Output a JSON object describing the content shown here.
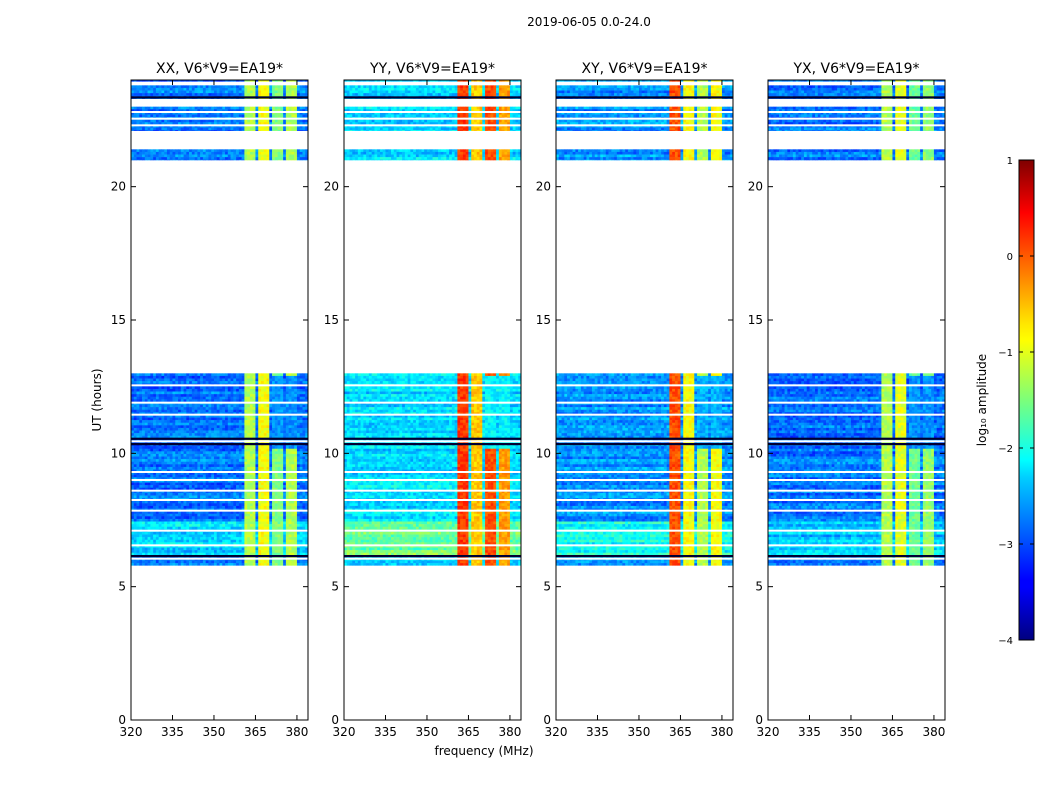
{
  "chart_data": {
    "type": "heatmap",
    "suptitle": "2019-06-05 0.0-24.0",
    "xlabel": "frequency (MHz)",
    "ylabel": "UT (hours)",
    "xlim": [
      320,
      384
    ],
    "ylim": [
      0,
      24
    ],
    "xticks": [
      320,
      335,
      350,
      365,
      380
    ],
    "yticks": [
      0,
      5,
      10,
      15,
      20
    ],
    "panels": [
      {
        "title": "XX, V6*V9=EA19*",
        "base": 0.15,
        "ch_levels": [
          0.55,
          0.62,
          0.5,
          0.55
        ],
        "early_boost": 0.1
      },
      {
        "title": "YY, V6*V9=EA19*",
        "base": 0.25,
        "ch_levels": [
          0.82,
          0.68,
          0.8,
          0.72
        ],
        "early_boost": 0.15
      },
      {
        "title": "XY, V6*V9=EA19*",
        "base": 0.18,
        "ch_levels": [
          0.8,
          0.62,
          0.55,
          0.62
        ],
        "early_boost": 0.12
      },
      {
        "title": "YX, V6*V9=EA19*",
        "base": 0.15,
        "ch_levels": [
          0.55,
          0.6,
          0.48,
          0.52
        ],
        "early_boost": 0.08
      }
    ],
    "data_ranges_hours": [
      [
        5.8,
        13.0
      ],
      [
        21.0,
        21.4
      ],
      [
        22.1,
        23.0
      ],
      [
        23.3,
        23.8
      ],
      [
        23.95,
        24.0
      ]
    ],
    "flagged_lines_hours": [
      6.05,
      6.55,
      7.1,
      7.85,
      8.25,
      8.6,
      9.0,
      9.3,
      10.45,
      11.45,
      11.9,
      12.55,
      22.3,
      22.55,
      22.8
    ],
    "dark_lines_hours": [
      6.15,
      10.35,
      10.55,
      23.35
    ],
    "rfi_channels_mhz": [
      [
        361,
        365
      ],
      [
        366,
        370
      ],
      [
        371,
        375
      ],
      [
        376,
        380
      ]
    ],
    "colorbar": {
      "label": "log₁₀ amplitude",
      "min": -4,
      "max": 1,
      "ticks": [
        1,
        0,
        -1,
        -2,
        -3,
        -4
      ],
      "tick_labels": [
        "1",
        "0",
        "−1",
        "−2",
        "−3",
        "−4"
      ],
      "colormap": "jet"
    }
  }
}
